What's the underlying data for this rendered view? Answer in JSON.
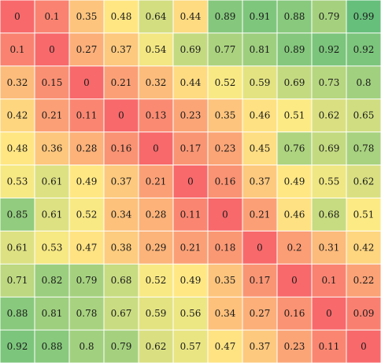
{
  "chart_data": {
    "type": "heatmap",
    "title": "",
    "xlabel": "",
    "ylabel": "",
    "legend": "none",
    "grid": true,
    "color_scale": {
      "min_value": 0,
      "max_value": 1,
      "min_color": "#f8696b",
      "mid_value": 0.5,
      "mid_color": "#ffeb84",
      "max_color": "#63be7b"
    },
    "grid_line_color": "#ffffff",
    "label_color": "#1a1a1a",
    "values": [
      [
        0,
        0.1,
        0.35,
        0.48,
        0.64,
        0.44,
        0.89,
        0.91,
        0.88,
        0.79,
        0.99
      ],
      [
        0.1,
        0,
        0.27,
        0.37,
        0.54,
        0.69,
        0.77,
        0.81,
        0.89,
        0.92,
        0.92
      ],
      [
        0.32,
        0.15,
        0,
        0.21,
        0.32,
        0.44,
        0.52,
        0.59,
        0.69,
        0.73,
        0.8
      ],
      [
        0.42,
        0.21,
        0.11,
        0,
        0.13,
        0.23,
        0.35,
        0.46,
        0.51,
        0.62,
        0.65
      ],
      [
        0.48,
        0.36,
        0.28,
        0.16,
        0,
        0.17,
        0.23,
        0.45,
        0.76,
        0.69,
        0.78
      ],
      [
        0.53,
        0.61,
        0.49,
        0.37,
        0.21,
        0,
        0.16,
        0.37,
        0.49,
        0.55,
        0.62
      ],
      [
        0.85,
        0.61,
        0.52,
        0.34,
        0.28,
        0.11,
        0,
        0.21,
        0.46,
        0.68,
        0.51
      ],
      [
        0.61,
        0.53,
        0.47,
        0.38,
        0.29,
        0.21,
        0.18,
        0,
        0.2,
        0.31,
        0.42
      ],
      [
        0.71,
        0.82,
        0.79,
        0.68,
        0.52,
        0.49,
        0.35,
        0.17,
        0,
        0.1,
        0.22
      ],
      [
        0.88,
        0.81,
        0.78,
        0.67,
        0.59,
        0.56,
        0.34,
        0.27,
        0.16,
        0,
        0.09
      ],
      [
        0.92,
        0.88,
        0.8,
        0.79,
        0.62,
        0.57,
        0.47,
        0.37,
        0.23,
        0.11,
        0
      ]
    ]
  }
}
